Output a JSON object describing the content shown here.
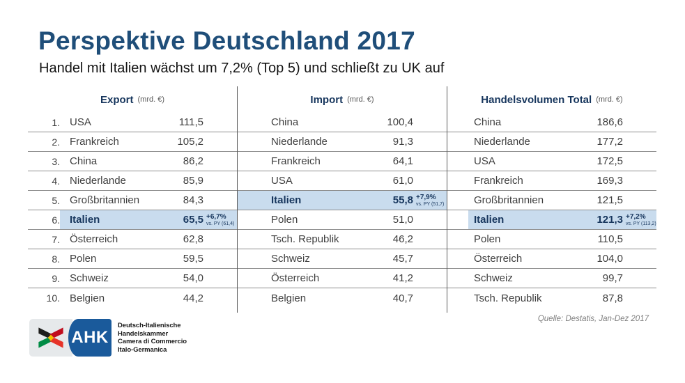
{
  "slide": {
    "title": "Perspektive Deutschland 2017",
    "subtitle": "Handel mit Italien wächst um 7,2% (Top 5) und schließt zu UK auf",
    "source": "Quelle: Destatis, Jan-Dez 2017"
  },
  "colors": {
    "title_blue": "#1f4e79",
    "navy": "#17365d",
    "highlight_bg": "#c9dcee",
    "row_border": "#8c8c8c",
    "divider": "#595959",
    "logo_blue": "#1a5a9b",
    "source_gray": "#808080"
  },
  "logo": {
    "abbr": "AHK",
    "lines": [
      "Deutsch-Italienische",
      "Handelskammer",
      "Camera di Commercio",
      "Italo-Germanica"
    ]
  },
  "table": {
    "sections": [
      {
        "id": "export",
        "header": "Export",
        "unit": "(mrd. €)",
        "highlight_full": false,
        "rows": [
          {
            "rank": "1.",
            "country": "USA",
            "value": "111,5"
          },
          {
            "rank": "2.",
            "country": "Frankreich",
            "value": "105,2"
          },
          {
            "rank": "3.",
            "country": "China",
            "value": "86,2"
          },
          {
            "rank": "4.",
            "country": "Niederlande",
            "value": "85,9"
          },
          {
            "rank": "5.",
            "country": "Großbritannien",
            "value": "84,3"
          },
          {
            "rank": "6.",
            "country": "Italien",
            "value": "65,5",
            "highlight": true,
            "pct": "+6,7%",
            "note": "vs. PY (61,4)"
          },
          {
            "rank": "7.",
            "country": "Österreich",
            "value": "62,8"
          },
          {
            "rank": "8.",
            "country": "Polen",
            "value": "59,5"
          },
          {
            "rank": "9.",
            "country": "Schweiz",
            "value": "54,0"
          },
          {
            "rank": "10.",
            "country": "Belgien",
            "value": "44,2"
          }
        ]
      },
      {
        "id": "import",
        "header": "Import",
        "unit": "(mrd. €)",
        "highlight_full": true,
        "rows": [
          {
            "country": "China",
            "value": "100,4"
          },
          {
            "country": "Niederlande",
            "value": "91,3"
          },
          {
            "country": "Frankreich",
            "value": "64,1"
          },
          {
            "country": "USA",
            "value": "61,0"
          },
          {
            "country": "Italien",
            "value": "55,8",
            "highlight": true,
            "pct": "+7,9%",
            "note": "vs. PY (51,7)"
          },
          {
            "country": "Polen",
            "value": "51,0"
          },
          {
            "country": "Tsch. Republik",
            "value": "46,2"
          },
          {
            "country": "Schweiz",
            "value": "45,7"
          },
          {
            "country": "Österreich",
            "value": "41,2"
          },
          {
            "country": "Belgien",
            "value": "40,7"
          }
        ]
      },
      {
        "id": "handelsvolumen",
        "header": "Handelsvolumen Total",
        "unit": "(mrd. €)",
        "highlight_full": false,
        "rows": [
          {
            "country": "China",
            "value": "186,6"
          },
          {
            "country": "Niederlande",
            "value": "177,2"
          },
          {
            "country": "USA",
            "value": "172,5"
          },
          {
            "country": "Frankreich",
            "value": "169,3"
          },
          {
            "country": "Großbritannien",
            "value": "121,5"
          },
          {
            "country": "Italien",
            "value": "121,3",
            "highlight": true,
            "pct": "+7,2%",
            "note": "vs. PY (113,2)"
          },
          {
            "country": "Polen",
            "value": "110,5"
          },
          {
            "country": "Österreich",
            "value": "104,0"
          },
          {
            "country": "Schweiz",
            "value": "99,7"
          },
          {
            "country": "Tsch. Republik",
            "value": "87,8"
          }
        ]
      }
    ]
  }
}
